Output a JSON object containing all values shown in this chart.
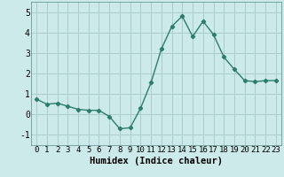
{
  "x": [
    0,
    1,
    2,
    3,
    4,
    5,
    6,
    7,
    8,
    9,
    10,
    11,
    12,
    13,
    14,
    15,
    16,
    17,
    18,
    19,
    20,
    21,
    22,
    23
  ],
  "y": [
    0.75,
    0.5,
    0.55,
    0.4,
    0.25,
    0.2,
    0.2,
    -0.1,
    -0.7,
    -0.65,
    0.3,
    1.55,
    3.2,
    4.3,
    4.8,
    3.8,
    4.55,
    3.9,
    2.8,
    2.2,
    1.65,
    1.6,
    1.65,
    1.65
  ],
  "title": "",
  "xlabel": "Humidex (Indice chaleur)",
  "ylabel": "",
  "ylim": [
    -1.5,
    5.5
  ],
  "xlim": [
    -0.5,
    23.5
  ],
  "xticks": [
    0,
    1,
    2,
    3,
    4,
    5,
    6,
    7,
    8,
    9,
    10,
    11,
    12,
    13,
    14,
    15,
    16,
    17,
    18,
    19,
    20,
    21,
    22,
    23
  ],
  "yticks": [
    -1,
    0,
    1,
    2,
    3,
    4,
    5
  ],
  "line_color": "#2d7d6e",
  "bg_color": "#cceaea",
  "grid_color": "#aacccc",
  "marker": "D",
  "marker_size": 2.2,
  "line_width": 1.0,
  "xlabel_fontsize": 7.5,
  "tick_fontsize": 6.5,
  "ytick_fontsize": 7.0
}
